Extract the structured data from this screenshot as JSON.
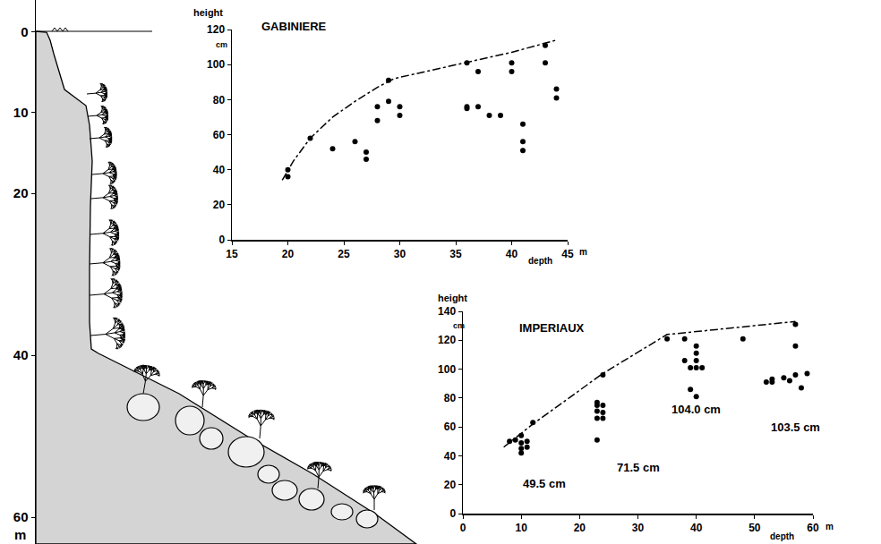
{
  "chart_data": [
    {
      "type": "diagram",
      "ylim": [
        63.3,
        -3.9
      ],
      "yticks": [
        0,
        10,
        20,
        40,
        60
      ],
      "yunit": "m"
    },
    {
      "type": "scatter",
      "title": "GABINIERE",
      "xlabel": "depth",
      "xunit": "m",
      "ylabel": "height",
      "yunit": "cm",
      "xlim": [
        15,
        45
      ],
      "xticks": [
        15,
        20,
        25,
        30,
        35,
        40,
        45
      ],
      "ylim": [
        0,
        120
      ],
      "yticks": [
        0,
        20,
        40,
        60,
        80,
        100,
        120
      ],
      "grid": false,
      "series": [
        {
          "type": "scatter",
          "marker": "circle",
          "color": "#000000",
          "x": [
            20,
            20,
            22,
            24,
            26,
            27,
            27,
            28,
            28,
            29,
            29,
            30,
            30,
            36,
            36,
            36,
            37,
            37,
            38,
            39,
            40,
            40,
            41,
            41,
            41,
            43,
            43,
            44,
            44
          ],
          "values": [
            40,
            36,
            58,
            52,
            56,
            50,
            46,
            76,
            68,
            91,
            79,
            76,
            71,
            101,
            76,
            75,
            96,
            76,
            71,
            71,
            101,
            96,
            66,
            56,
            51,
            111,
            101,
            86,
            81
          ]
        },
        {
          "type": "line",
          "line_style": "dashdot",
          "color": "#000000",
          "x": [
            19.5,
            20.5,
            22,
            24,
            26,
            28,
            29.5,
            35,
            40,
            44
          ],
          "values": [
            34,
            45,
            58,
            70,
            79,
            87,
            92,
            100,
            107,
            114
          ]
        }
      ]
    },
    {
      "type": "scatter",
      "title": "IMPERIAUX",
      "xlabel": "depth",
      "xunit": "m",
      "ylabel": "height",
      "yunit": "cm",
      "xlim": [
        0,
        60
      ],
      "xticks": [
        0,
        10,
        20,
        30,
        40,
        50,
        60
      ],
      "ylim": [
        0,
        140
      ],
      "yticks": [
        0,
        20,
        40,
        60,
        80,
        100,
        120,
        140
      ],
      "grid": false,
      "series": [
        {
          "type": "scatter",
          "marker": "circle",
          "color": "#000000",
          "x": [
            8,
            9,
            10,
            10,
            10,
            10,
            11,
            11,
            12,
            23,
            23,
            23,
            23,
            23,
            24,
            24,
            24,
            24,
            35,
            38,
            38,
            39,
            39,
            40,
            40,
            40,
            40,
            40,
            41,
            48,
            52,
            53,
            53,
            55,
            56,
            57,
            57,
            57,
            58,
            59
          ],
          "values": [
            50,
            51,
            54,
            49,
            45,
            42,
            50,
            46,
            63,
            77,
            75,
            71,
            66,
            51,
            75,
            70,
            66,
            96,
            121,
            121,
            106,
            86,
            101,
            116,
            111,
            106,
            101,
            81,
            101,
            121,
            91,
            93,
            91,
            94,
            92,
            131,
            116,
            96,
            87,
            97
          ]
        },
        {
          "type": "line",
          "line_style": "dashdot",
          "color": "#000000",
          "x": [
            7,
            12,
            24,
            35,
            40,
            50,
            57
          ],
          "values": [
            46,
            62,
            97,
            124,
            126,
            130,
            133
          ]
        }
      ],
      "annotations": [
        {
          "text": "49.5 cm",
          "x": 14,
          "y": 21
        },
        {
          "text": "71.5 cm",
          "x": 30,
          "y": 32
        },
        {
          "text": "104.0 cm",
          "x": 40,
          "y": 72
        },
        {
          "text": "103.5 cm",
          "x": 57,
          "y": 60
        }
      ]
    }
  ]
}
